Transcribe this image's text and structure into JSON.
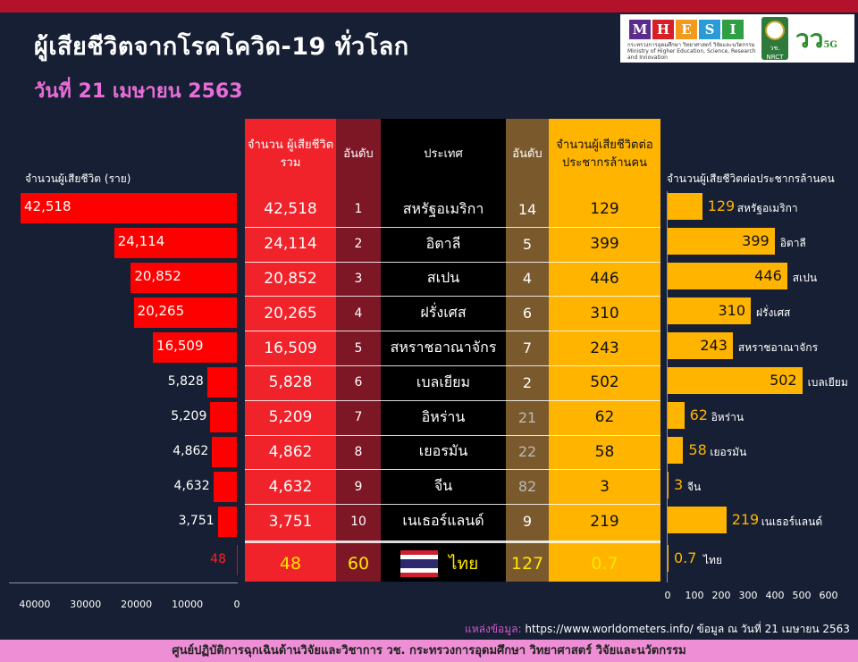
{
  "header": {
    "title": "ผู้เสียชีวิตจากโรคโควิด-19 ทั่วโลก",
    "date": "วันที่ 21 เมษายน 2563",
    "logo_letters": [
      "M",
      "H",
      "E",
      "S",
      "I"
    ],
    "logo_colors": [
      "#5b2c8b",
      "#d62027",
      "#f39a1d",
      "#2a9bd6",
      "#2f9e44"
    ],
    "ministry_text": "กระทรวงการอุดมศึกษา วิทยาศาสตร์ วิจัยและนวัตกรรม Ministry of Higher Education, Science, Research and Innovation",
    "seal_text": "วช. NRCT",
    "v5g_text": "วว",
    "v5g_small": "5G"
  },
  "left_axis_label": "จำนวนผู้เสียชีวิต (ราย)",
  "right_axis_label": "จำนวนผู้เสียชีวิตต่อประชากรล้านคน",
  "table": {
    "headers": {
      "total": "จำนวน ผู้เสียชีวิตรวม",
      "rank": "อันดับ",
      "country": "ประเทศ",
      "rank2": "อันดับ",
      "per_million": "จำนวนผู้เสียชีวิตต่อ ประชากรล้านคน"
    },
    "rows": [
      {
        "total": "42,518",
        "rank": "1",
        "country": "สหรัฐอเมริกา",
        "rank2": "14",
        "per_million": "129"
      },
      {
        "total": "24,114",
        "rank": "2",
        "country": "อิตาลี",
        "rank2": "5",
        "per_million": "399"
      },
      {
        "total": "20,852",
        "rank": "3",
        "country": "สเปน",
        "rank2": "4",
        "per_million": "446"
      },
      {
        "total": "20,265",
        "rank": "4",
        "country": "ฝรั่งเศส",
        "rank2": "6",
        "per_million": "310"
      },
      {
        "total": "16,509",
        "rank": "5",
        "country": "สหราชอาณาจักร",
        "rank2": "7",
        "per_million": "243"
      },
      {
        "total": "5,828",
        "rank": "6",
        "country": "เบลเยียม",
        "rank2": "2",
        "per_million": "502"
      },
      {
        "total": "5,209",
        "rank": "7",
        "country": "อิหร่าน",
        "rank2": "21",
        "per_million": "62"
      },
      {
        "total": "4,862",
        "rank": "8",
        "country": "เยอรมัน",
        "rank2": "22",
        "per_million": "58"
      },
      {
        "total": "4,632",
        "rank": "9",
        "country": "จีน",
        "rank2": "82",
        "per_million": "3"
      },
      {
        "total": "3,751",
        "rank": "10",
        "country": "เนเธอร์แลนด์",
        "rank2": "9",
        "per_million": "219"
      }
    ],
    "thailand": {
      "total": "48",
      "rank": "60",
      "country": "ไทย",
      "rank2": "127",
      "per_million": "0.7"
    }
  },
  "colors": {
    "red": "#ff0000",
    "total_col": "#f0222a",
    "rank_col": "#7d1625",
    "country_col": "#000000",
    "rank2_col": "#7a5a2c",
    "perm_col": "#ffb400",
    "right_bar": "#ffb400",
    "grey_rank": "#b9b9b9",
    "thai_rank": "#ffe600",
    "thai_country": "#ffe600"
  },
  "chart_data": [
    {
      "type": "bar",
      "orientation": "horizontal",
      "direction": "right-to-left",
      "title": "จำนวนผู้เสียชีวิต (ราย)",
      "categories": [
        "สหรัฐอเมริกา",
        "อิตาลี",
        "สเปน",
        "ฝรั่งเศส",
        "สหราชอาณาจักร",
        "เบลเยียม",
        "อิหร่าน",
        "เยอรมัน",
        "จีน",
        "เนเธอร์แลนด์",
        "ไทย"
      ],
      "values": [
        42518,
        24114,
        20852,
        20265,
        16509,
        5828,
        5209,
        4862,
        4632,
        3751,
        48
      ],
      "labels": [
        "42,518",
        "24,114",
        "20,852",
        "20,265",
        "16,509",
        "5,828",
        "5,209",
        "4,862",
        "4,632",
        "3,751",
        "48"
      ],
      "xlim": [
        0,
        42518
      ],
      "ticks": [
        40000,
        30000,
        20000,
        10000,
        0
      ]
    },
    {
      "type": "bar",
      "orientation": "horizontal",
      "title": "จำนวนผู้เสียชีวิตต่อประชากรล้านคน",
      "categories": [
        "สหรัฐอเมริกา",
        "อิตาลี",
        "สเปน",
        "ฝรั่งเศส",
        "สหราชอาณาจักร",
        "เบลเยียม",
        "อิหร่าน",
        "เยอรมัน",
        "จีน",
        "เนเธอร์แลนด์",
        "ไทย"
      ],
      "values": [
        129,
        399,
        446,
        310,
        243,
        502,
        62,
        58,
        3,
        219,
        0.7
      ],
      "labels": [
        "129",
        "399",
        "446",
        "310",
        "243",
        "502",
        "62",
        "58",
        "3",
        "219",
        "0.7"
      ],
      "xlim": [
        0,
        600
      ],
      "ticks": [
        0,
        100,
        200,
        300,
        400,
        500,
        600
      ]
    }
  ],
  "footer": {
    "source_key": "แหล่งข้อมูล:",
    "source_url": "https://www.worldometers.info/",
    "source_date": "ข้อมูล ณ วันที่ 21 เมษายน 2563",
    "band": "ศูนย์ปฏิบัติการฉุกเฉินด้านวิจัยและวิชาการ   วช.   กระทรวงการอุดมศึกษา วิทยาศาสตร์ วิจัยและนวัตกรรม"
  }
}
